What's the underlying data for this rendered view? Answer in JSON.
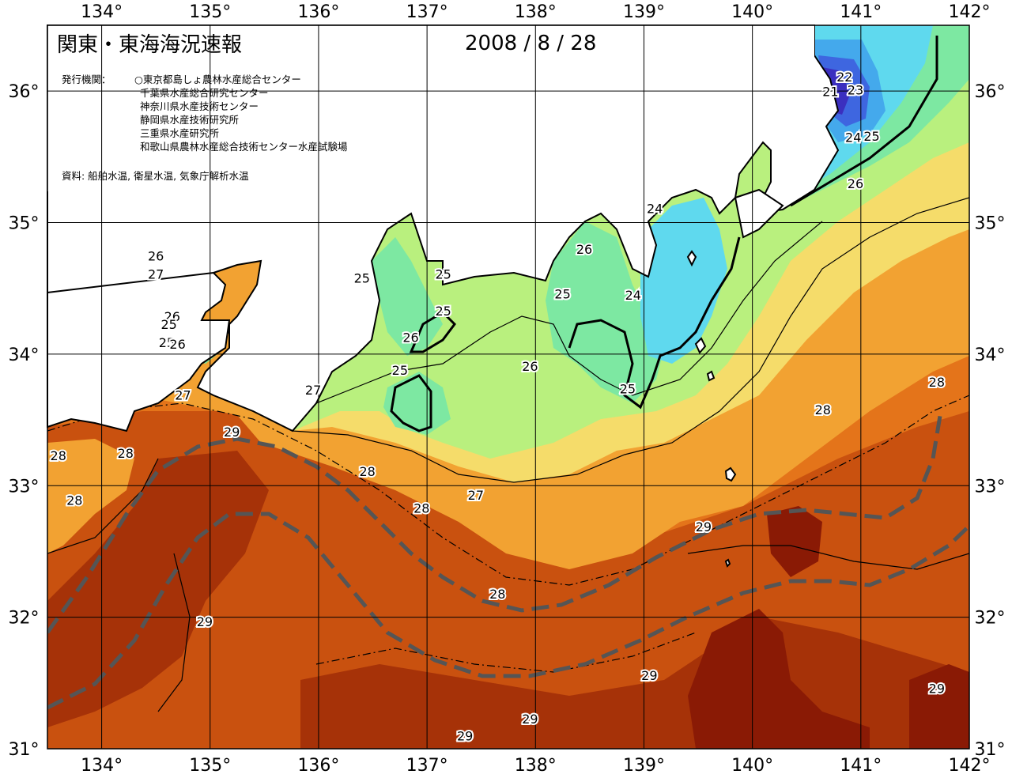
{
  "header": {
    "title": "関東・東海海況速報",
    "date": "2008 / 8 / 28",
    "issuer_label": "発行機関：",
    "issuers": [
      "○東京都島しょ農林水産総合センター",
      "千葉県水産総合研究センター",
      "神奈川県水産技術センター",
      "静岡県水産技術研究所",
      "三重県水産研究所",
      "和歌山県農林水産総合技術センター水産試験場"
    ],
    "sources": "資料: 船舶水温, 衛星水温, 気象庁解析水温"
  },
  "axes": {
    "lon_labels": [
      "134°",
      "135°",
      "136°",
      "137°",
      "138°",
      "139°",
      "140°",
      "141°",
      "142°"
    ],
    "lat_labels": [
      "36°",
      "35°",
      "34°",
      "33°",
      "32°",
      "31°"
    ],
    "lon_range": [
      133.5,
      142.0
    ],
    "lat_range": [
      31.0,
      36.5
    ]
  },
  "isotherm_labels": [
    {
      "text": "22",
      "lon": 140.85,
      "lat": 36.1
    },
    {
      "text": "21",
      "lon": 140.72,
      "lat": 35.99
    },
    {
      "text": "23",
      "lon": 140.95,
      "lat": 36.0
    },
    {
      "text": "24",
      "lon": 140.93,
      "lat": 35.64
    },
    {
      "text": "25",
      "lon": 141.1,
      "lat": 35.65
    },
    {
      "text": "26",
      "lon": 140.95,
      "lat": 35.29
    },
    {
      "text": "24",
      "lon": 139.1,
      "lat": 35.1
    },
    {
      "text": "26",
      "lon": 138.45,
      "lat": 34.79
    },
    {
      "text": "25",
      "lon": 138.25,
      "lat": 34.45
    },
    {
      "text": "24",
      "lon": 138.9,
      "lat": 34.44
    },
    {
      "text": "25",
      "lon": 137.15,
      "lat": 34.6
    },
    {
      "text": "25",
      "lon": 136.4,
      "lat": 34.57
    },
    {
      "text": "25",
      "lon": 137.15,
      "lat": 34.32
    },
    {
      "text": "26",
      "lon": 136.85,
      "lat": 34.12
    },
    {
      "text": "25",
      "lon": 136.75,
      "lat": 33.87
    },
    {
      "text": "26",
      "lon": 137.95,
      "lat": 33.9
    },
    {
      "text": "25",
      "lon": 138.85,
      "lat": 33.73
    },
    {
      "text": "26",
      "lon": 134.5,
      "lat": 34.74
    },
    {
      "text": "27",
      "lon": 134.5,
      "lat": 34.6
    },
    {
      "text": "26",
      "lon": 134.65,
      "lat": 34.28
    },
    {
      "text": "25",
      "lon": 134.62,
      "lat": 34.22
    },
    {
      "text": "25",
      "lon": 134.6,
      "lat": 34.08
    },
    {
      "text": "26",
      "lon": 134.7,
      "lat": 34.07
    },
    {
      "text": "27",
      "lon": 134.75,
      "lat": 33.68
    },
    {
      "text": "27",
      "lon": 135.95,
      "lat": 33.72
    },
    {
      "text": "28",
      "lon": 141.7,
      "lat": 33.78
    },
    {
      "text": "28",
      "lon": 140.65,
      "lat": 33.57
    },
    {
      "text": "29",
      "lon": 135.2,
      "lat": 33.4
    },
    {
      "text": "28",
      "lon": 133.6,
      "lat": 33.22
    },
    {
      "text": "28",
      "lon": 134.22,
      "lat": 33.24
    },
    {
      "text": "28",
      "lon": 133.75,
      "lat": 32.88
    },
    {
      "text": "28",
      "lon": 136.45,
      "lat": 33.1
    },
    {
      "text": "27",
      "lon": 137.45,
      "lat": 32.92
    },
    {
      "text": "28",
      "lon": 136.95,
      "lat": 32.82
    },
    {
      "text": "29",
      "lon": 139.55,
      "lat": 32.68
    },
    {
      "text": "28",
      "lon": 137.65,
      "lat": 32.17
    },
    {
      "text": "29",
      "lon": 134.95,
      "lat": 31.96
    },
    {
      "text": "29",
      "lon": 139.05,
      "lat": 31.55
    },
    {
      "text": "29",
      "lon": 141.7,
      "lat": 31.45
    },
    {
      "text": "29",
      "lon": 137.95,
      "lat": 31.22
    },
    {
      "text": "29",
      "lon": 137.35,
      "lat": 31.09
    }
  ],
  "colors": {
    "t21": "#3b2fbf",
    "t22": "#3e66e0",
    "t23": "#44a9ec",
    "t24": "#5fd9ee",
    "t25": "#7de8a2",
    "t26": "#b9f07e",
    "t27": "#f5dc6a",
    "t28": "#f2a232",
    "t28b": "#e4741a",
    "t29": "#c9510f",
    "t30": "#a63208",
    "t31": "#8a1a05",
    "land": "#ffffff",
    "kuroshio": "#555555"
  }
}
